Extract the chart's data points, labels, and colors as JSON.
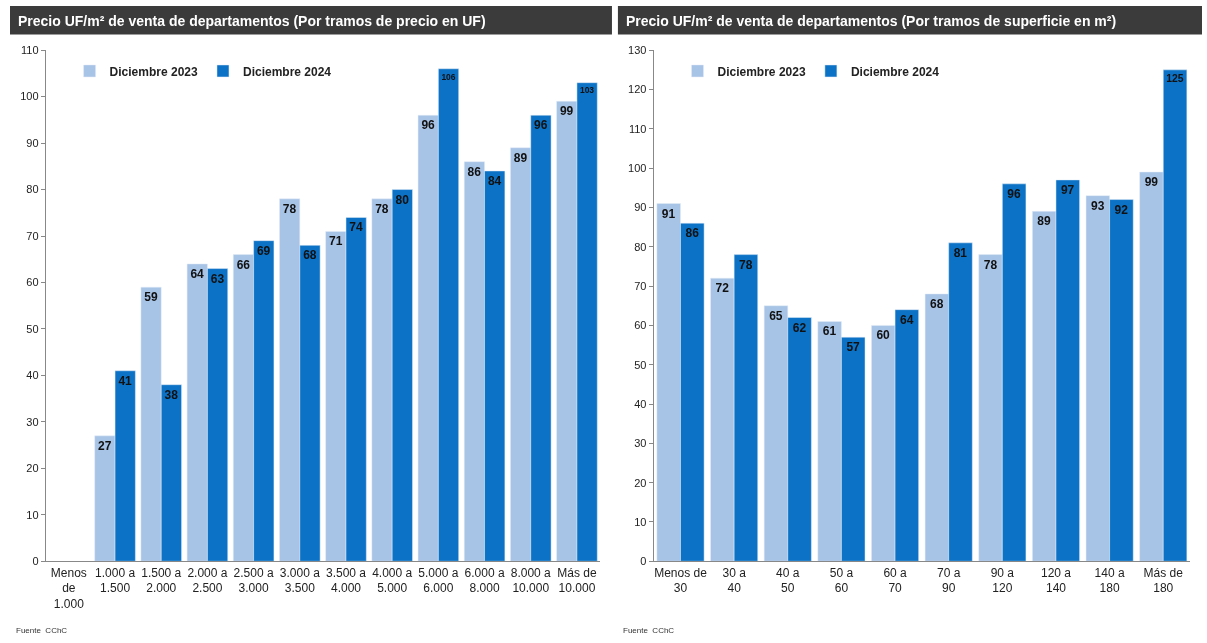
{
  "chart_data": [
    {
      "type": "bar",
      "title": "Precio UF/m² de venta de departamentos (Por tramos de precio en UF)",
      "categories": [
        "Menos\nde\n1.000",
        "1.000 a\n1.500",
        "1.500 a\n2.000",
        "2.000 a\n2.500",
        "2.500 a\n3.000",
        "3.000 a\n3.500",
        "3.500 a\n4.000",
        "4.000 a\n5.000",
        "5.000 a\n6.000",
        "6.000 a\n8.000",
        "8.000 a\n10.000",
        "Más de\n10.000"
      ],
      "series": [
        {
          "name": "Diciembre 2023",
          "color": "#a7c3e6",
          "values": [
            null,
            27,
            59,
            64,
            66,
            78,
            71,
            78,
            96,
            86,
            89,
            99
          ]
        },
        {
          "name": "Diciembre 2024",
          "color": "#0b72c6",
          "values": [
            null,
            41,
            38,
            63,
            69,
            68,
            74,
            80,
            106,
            84,
            96,
            103
          ]
        }
      ],
      "ylim": [
        0,
        110
      ],
      "yticks": [
        0,
        10,
        20,
        30,
        40,
        50,
        60,
        70,
        80,
        90,
        100,
        110
      ],
      "grid": false,
      "legend": "top left",
      "data_labels": true,
      "annotations": [
        "Fuente  CChC"
      ]
    },
    {
      "type": "bar",
      "title": "Precio UF/m² de venta de departamentos (Por tramos de superficie en m²)",
      "categories": [
        "Menos de\n30",
        "30 a\n40",
        "40 a\n50",
        "50 a\n60",
        "60 a\n70",
        "70 a\n90",
        "90 a\n120",
        "120 a\n140",
        "140 a\n180",
        "Más de\n180"
      ],
      "series": [
        {
          "name": "Diciembre 2023",
          "color": "#a7c3e6",
          "values": [
            91,
            72,
            65,
            61,
            60,
            68,
            78,
            89,
            93,
            99
          ]
        },
        {
          "name": "Diciembre 2024",
          "color": "#0b72c6",
          "values": [
            86,
            78,
            62,
            57,
            64,
            81,
            96,
            97,
            92,
            125
          ]
        }
      ],
      "ylim": [
        0,
        130
      ],
      "yticks": [
        0,
        10,
        20,
        30,
        40,
        50,
        60,
        70,
        80,
        90,
        100,
        110,
        120,
        130
      ],
      "grid": false,
      "legend": "top left",
      "data_labels": true,
      "annotations": [
        "Fuente  CChC"
      ]
    }
  ]
}
